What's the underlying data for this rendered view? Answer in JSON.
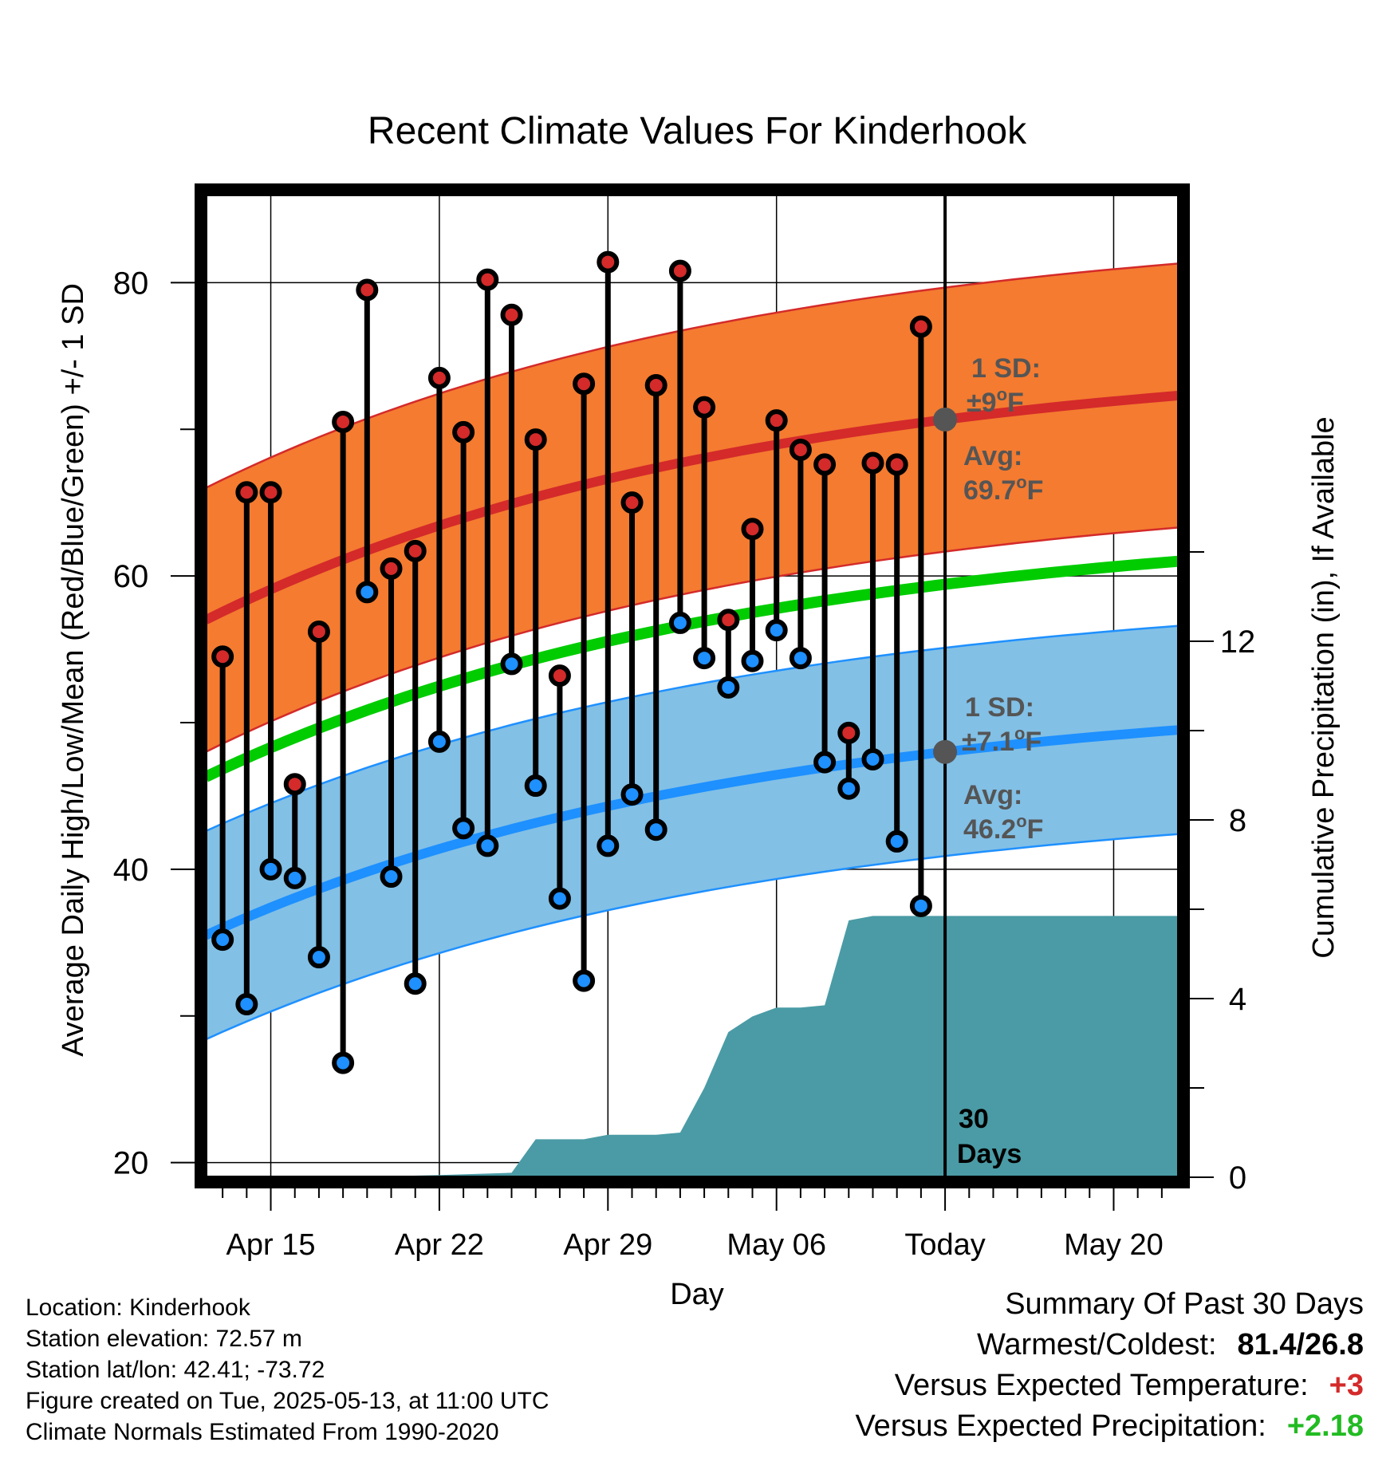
{
  "chart_data": {
    "type": "line",
    "title": "Recent Climate Values For Kinderhook",
    "xlabel": "Day",
    "ylabel": "Average Daily High/Low/Mean (Red/Blue/Green) +/- 1 SD",
    "y2label": "Cumulative Precipitation (in), If Available",
    "ylim": [
      19,
      86
    ],
    "y2lim": [
      0,
      22
    ],
    "yticks": [
      "20",
      "40",
      "60",
      "80"
    ],
    "y2ticks": [
      "0",
      "4",
      "8",
      "12"
    ],
    "xticks": [
      {
        "day": 15,
        "label": "Apr 15"
      },
      {
        "day": 22,
        "label": "Apr 22"
      },
      {
        "day": 29,
        "label": "Apr 29"
      },
      {
        "day": 36,
        "label": "May 06"
      },
      {
        "day": 43,
        "label": "Today"
      },
      {
        "day": 50,
        "label": "May 20"
      }
    ],
    "xlim": [
      12.3,
      52.7
    ],
    "days": [
      13,
      14,
      15,
      16,
      17,
      18,
      19,
      20,
      21,
      22,
      23,
      24,
      25,
      26,
      27,
      28,
      29,
      30,
      31,
      32,
      33,
      34,
      35,
      36,
      37,
      38,
      39,
      40,
      41,
      42
    ],
    "series": [
      {
        "name": "High",
        "color": "#d42a2a",
        "values": [
          54.5,
          65.7,
          65.7,
          45.8,
          56.2,
          70.5,
          79.5,
          60.5,
          61.7,
          73.5,
          69.8,
          80.2,
          77.8,
          69.3,
          53.2,
          73.1,
          81.4,
          65,
          73,
          80.8,
          71.5,
          57,
          63.2,
          70.6,
          68.6,
          67.6,
          49.3,
          67.7,
          67.6,
          77
        ]
      },
      {
        "name": "Low",
        "color": "#1e90ff",
        "values": [
          35.2,
          30.8,
          40,
          39.4,
          34,
          26.8,
          58.9,
          39.5,
          32.2,
          48.7,
          42.8,
          41.6,
          54,
          45.7,
          38,
          32.4,
          41.6,
          45.1,
          42.7,
          56.8,
          54.4,
          52.4,
          54.2,
          56.3,
          54.4,
          47.3,
          45.5,
          47.5,
          41.9,
          37.5
        ]
      }
    ],
    "normals": {
      "day_range": [
        12.3,
        52.7
      ],
      "high_mean": [
        57,
        72.3
      ],
      "high_sd": 9,
      "low_mean": [
        35.5,
        49.5
      ],
      "low_sd": 7.1,
      "mean": [
        46.3,
        61
      ]
    },
    "precip": {
      "color": "#4a9ba5",
      "points": [
        [
          12.3,
          0
        ],
        [
          18,
          0
        ],
        [
          22,
          0.05
        ],
        [
          25,
          0.1
        ],
        [
          26,
          0.85
        ],
        [
          28,
          0.85
        ],
        [
          29,
          0.95
        ],
        [
          31,
          0.95
        ],
        [
          32,
          1
        ],
        [
          33,
          2
        ],
        [
          34,
          3.25
        ],
        [
          35,
          3.6
        ],
        [
          36,
          3.8
        ],
        [
          37,
          3.8
        ],
        [
          38,
          3.85
        ],
        [
          39,
          5.75
        ],
        [
          40,
          5.85
        ],
        [
          52.7,
          5.85
        ]
      ]
    },
    "today_day": 43,
    "annotations": {
      "high_sd": "1 SD:",
      "high_sd_val": "±9",
      "high_avg": "Avg:",
      "high_avg_val": "69.7",
      "low_sd": "1 SD:",
      "low_sd_val": "±7.1",
      "low_avg": "Avg:",
      "low_avg_val": "46.2",
      "deg": "o",
      "unit": "F",
      "days_count": "30",
      "days_word": "Days"
    },
    "colors": {
      "high_band": "#f47b30",
      "high_line": "#d42a2a",
      "low_band": "#82c0e6",
      "low_line": "#1e90ff",
      "mean_line": "#00cc00",
      "annotation": "#555555"
    }
  },
  "info": {
    "location": "Location: Kinderhook",
    "elevation": "Station elevation: 72.57 m",
    "latlon": "Station lat/lon: 42.41; -73.72",
    "created": "Figure created on Tue, 2025-05-13, at 11:00 UTC",
    "normals": "Climate Normals Estimated From 1990-2020"
  },
  "summary": {
    "title": "Summary Of Past 30 Days",
    "warm_cold_label": "Warmest/Coldest:",
    "warm_cold_value": "81.4/26.8",
    "temp_label": "Versus Expected Temperature:",
    "temp_value": "+3",
    "temp_color": "#d42a2a",
    "precip_label": "Versus Expected Precipitation:",
    "precip_value": "+2.18",
    "precip_color": "#22bb22"
  }
}
